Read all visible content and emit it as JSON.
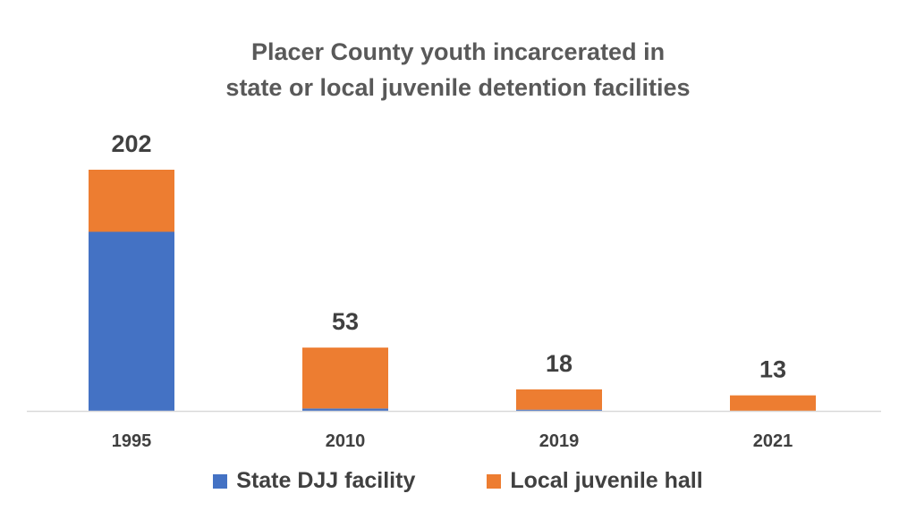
{
  "chart_data": {
    "type": "bar",
    "stacked": true,
    "title_lines": [
      "Placer County youth incarcerated in",
      "state or local juvenile detention facilities"
    ],
    "categories": [
      "1995",
      "2010",
      "2019",
      "2021"
    ],
    "series": [
      {
        "name": "State DJJ facility",
        "color": "#4472C4",
        "values": [
          150,
          2,
          1,
          0
        ]
      },
      {
        "name": "Local juvenile hall",
        "color": "#ED7D31",
        "values": [
          52,
          51,
          17,
          13
        ]
      }
    ],
    "totals": [
      "202",
      "53",
      "18",
      "13"
    ],
    "ylim": [
      0,
      210
    ],
    "grid": false,
    "legend_position": "bottom",
    "xlabel": "",
    "ylabel": ""
  }
}
